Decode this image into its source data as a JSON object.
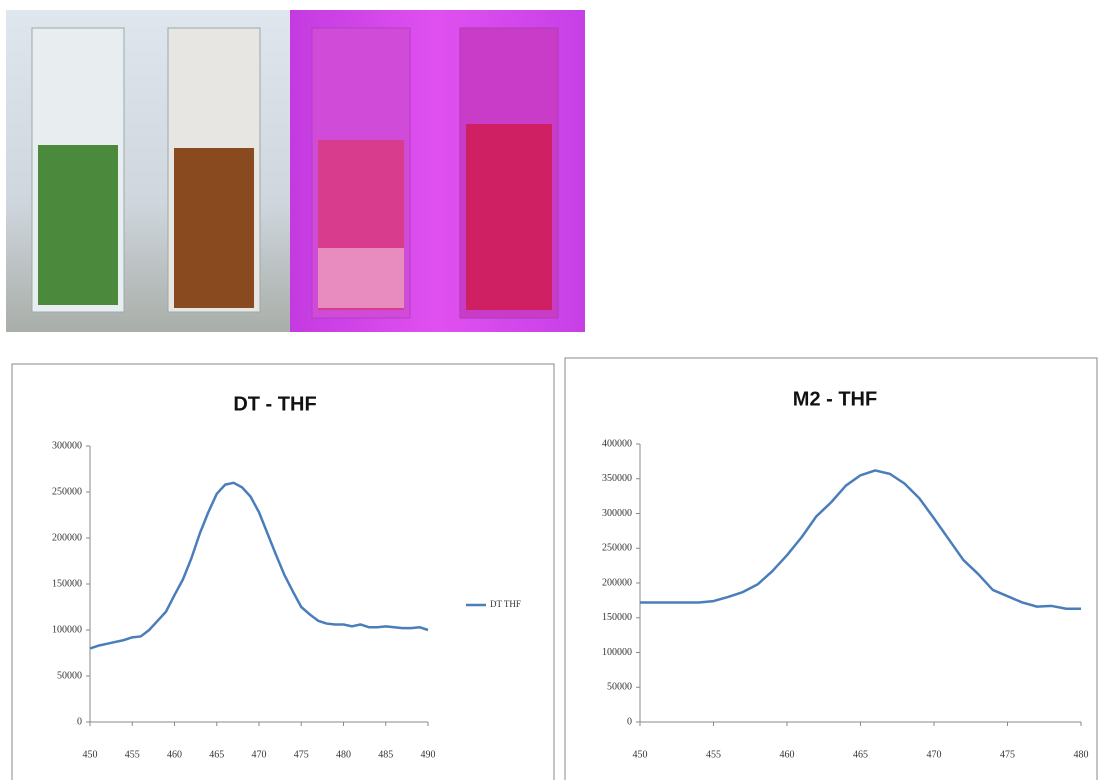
{
  "chart_data": [
    {
      "type": "line",
      "title": "DT - THF",
      "x": [
        450,
        451,
        452,
        453,
        454,
        455,
        456,
        457,
        458,
        459,
        460,
        461,
        462,
        463,
        464,
        465,
        466,
        467,
        468,
        469,
        470,
        471,
        472,
        473,
        474,
        475,
        476,
        477,
        478,
        479,
        480,
        481,
        482,
        483,
        484,
        485,
        486,
        487,
        488,
        489,
        490
      ],
      "series": [
        {
          "name": "DT THF",
          "color": "#4a7ebb",
          "values": [
            80000,
            83000,
            85000,
            87000,
            89000,
            92000,
            93000,
            100000,
            110000,
            120000,
            138000,
            155000,
            178000,
            205000,
            228000,
            248000,
            258000,
            260000,
            255000,
            245000,
            228000,
            205000,
            182000,
            160000,
            142000,
            125000,
            117000,
            110000,
            107000,
            106000,
            106000,
            104000,
            106000,
            103000,
            103000,
            104000,
            103000,
            102000,
            102000,
            103000,
            100000
          ]
        }
      ],
      "xlim": [
        450,
        490
      ],
      "xticks": [
        450,
        455,
        460,
        465,
        470,
        475,
        480,
        485,
        490
      ],
      "ylim": [
        0,
        300000
      ],
      "yticks": [
        0,
        50000,
        100000,
        150000,
        200000,
        250000,
        300000
      ],
      "legend": "right",
      "grid": false
    },
    {
      "type": "line",
      "title": "M2 - THF",
      "x": [
        450,
        451,
        452,
        453,
        454,
        455,
        456,
        457,
        458,
        459,
        460,
        461,
        462,
        463,
        464,
        465,
        466,
        467,
        468,
        469,
        470,
        471,
        472,
        473,
        474,
        475,
        476,
        477,
        478,
        479,
        480
      ],
      "series": [
        {
          "color": "#4a7ebb",
          "values": [
            172000,
            172000,
            172000,
            172000,
            172000,
            174000,
            180000,
            187000,
            198000,
            217000,
            240000,
            266000,
            296000,
            316000,
            340000,
            355000,
            362000,
            357000,
            343000,
            322000,
            293000,
            263000,
            233000,
            213000,
            190000,
            181000,
            172000,
            166000,
            167000,
            163000,
            163000
          ]
        }
      ],
      "xlim": [
        450,
        480
      ],
      "xticks": [
        450,
        455,
        460,
        465,
        470,
        475,
        480
      ],
      "ylim": [
        0,
        400000
      ],
      "yticks": [
        0,
        50000,
        100000,
        150000,
        200000,
        250000,
        300000,
        350000,
        400000
      ],
      "grid": false
    }
  ]
}
